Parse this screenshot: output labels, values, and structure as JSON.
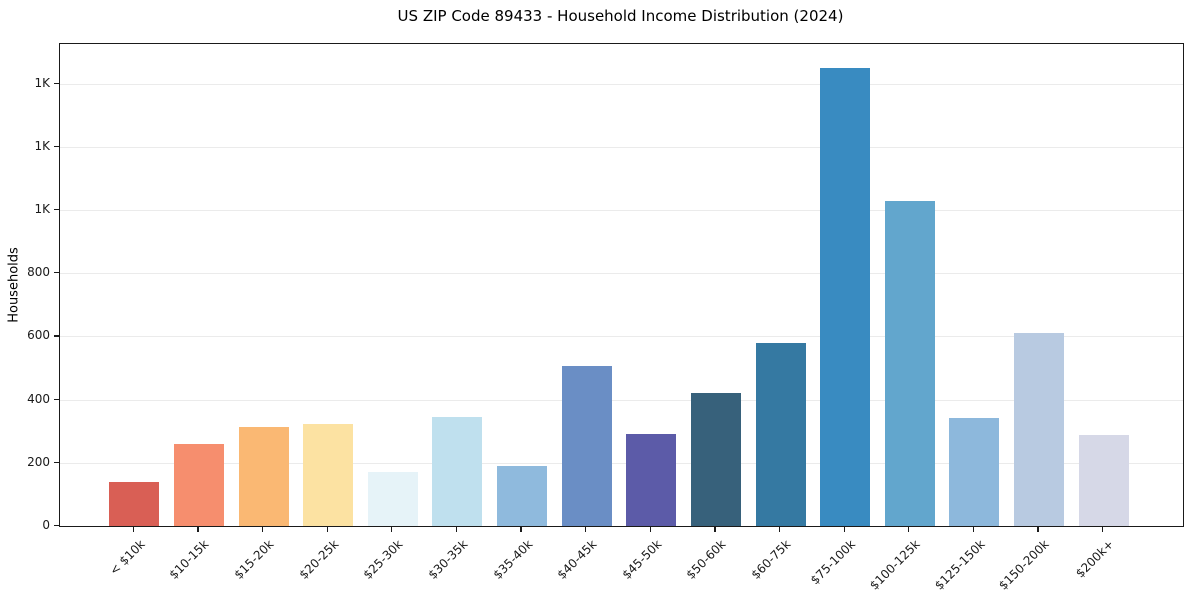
{
  "chart_data": {
    "type": "bar",
    "title": "US ZIP Code 89433 - Household Income Distribution (2024)",
    "xlabel": "",
    "ylabel": "Households",
    "categories": [
      "< $10k",
      "$10-15k",
      "$15-20k",
      "$20-25k",
      "$25-30k",
      "$30-35k",
      "$35-40k",
      "$40-45k",
      "$45-50k",
      "$50-60k",
      "$60-75k",
      "$75-100k",
      "$100-125k",
      "$125-150k",
      "$150-200k",
      "$200k+"
    ],
    "values": [
      139,
      260,
      312,
      322,
      171,
      345,
      191,
      507,
      291,
      422,
      578,
      1450,
      1028,
      342,
      610,
      287
    ],
    "bar_colors": [
      "#d95f55",
      "#f68e6e",
      "#fab873",
      "#fce2a2",
      "#e6f3f8",
      "#bfe0ee",
      "#8fbadd",
      "#6a8ec5",
      "#5c5ba8",
      "#37617b",
      "#3579a2",
      "#398bc1",
      "#62a6cd",
      "#8db8dc",
      "#b8cae1",
      "#d6d8e7"
    ],
    "ylim": [
      0,
      1525
    ],
    "yticks": {
      "values": [
        0,
        200,
        400,
        600,
        800,
        1000,
        1200,
        1400
      ],
      "labels": [
        "0",
        "200",
        "400",
        "600",
        "800",
        "1K",
        "1K",
        "1K"
      ]
    },
    "grid": "horizontal",
    "gridline_color": "#ebebeb",
    "axis_color": "#1a1a1a",
    "background_color": "#ffffff",
    "legend": "none"
  }
}
